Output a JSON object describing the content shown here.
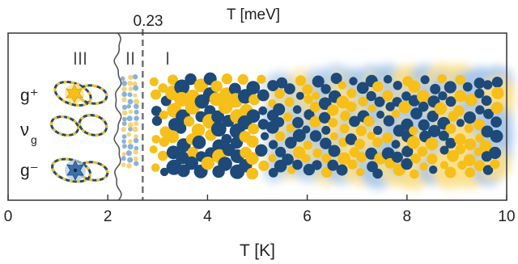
{
  "chart_data": {
    "type": "scatter",
    "top_axis_label": "T [meV]",
    "top_tick_label": "0.23",
    "xlabel": "T [K]",
    "xlim": [
      0,
      10
    ],
    "x_ticks": [
      "0",
      "2",
      "4",
      "6",
      "8",
      "10"
    ],
    "x_tick_values": [
      0,
      2,
      4,
      6,
      8,
      10
    ],
    "boundary_wavy_x": 2.2,
    "boundary_dashed_x": 2.7,
    "regions": [
      {
        "label": "III",
        "x_range": [
          0,
          2.2
        ]
      },
      {
        "label": "II",
        "x_range": [
          2.2,
          2.7
        ]
      },
      {
        "label": "I",
        "x_range": [
          2.7,
          10
        ]
      }
    ],
    "row_labels": [
      "g⁺",
      "ν",
      "g⁻"
    ],
    "row_label_subscript": "g",
    "colors": {
      "navy": "#1d4a78",
      "gold": "#f6bf1a",
      "light_blue": "#8ab2d8",
      "light_gold": "#f5d57a",
      "glow_blue": "#a8c8ea",
      "glow_gold": "#fbe089"
    },
    "legend_icons": [
      "gplus-pair-icon",
      "nu-pair-icon",
      "gminus-pair-icon"
    ]
  }
}
